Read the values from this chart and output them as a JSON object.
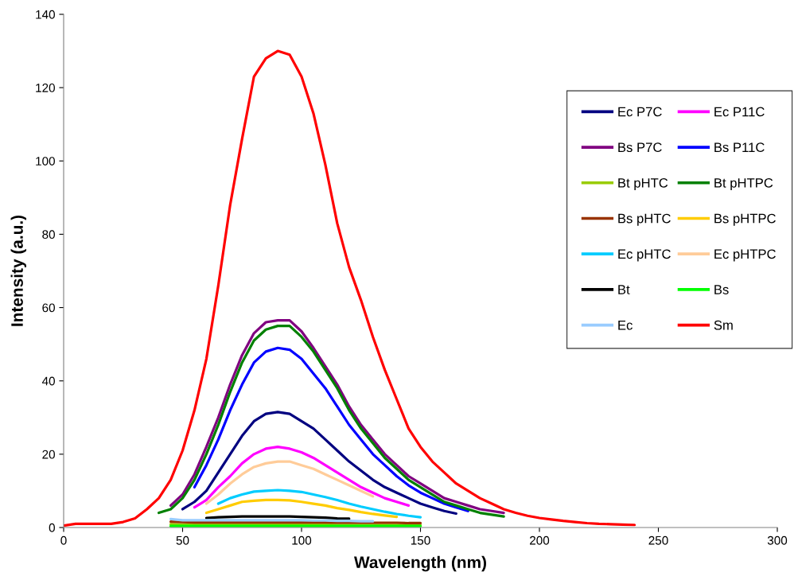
{
  "chart_data": {
    "type": "line",
    "xlabel": "Wavelength (nm)",
    "ylabel": "Intensity (a.u.)",
    "x": [
      0,
      5,
      10,
      15,
      20,
      25,
      30,
      35,
      40,
      45,
      50,
      55,
      60,
      65,
      70,
      75,
      80,
      85,
      90,
      95,
      100,
      105,
      110,
      115,
      120,
      125,
      130,
      135,
      140,
      145,
      150,
      155,
      160,
      165,
      170,
      175,
      180,
      185,
      190,
      195,
      200,
      205,
      210,
      215,
      220,
      225,
      230,
      235,
      240
    ],
    "xlim": [
      0,
      300
    ],
    "xticks": [
      0,
      50,
      100,
      150,
      200,
      250,
      300
    ],
    "ylim": [
      0,
      140
    ],
    "yticks": [
      0,
      20,
      40,
      60,
      80,
      100,
      120,
      140
    ],
    "legend": "right",
    "series": [
      {
        "name": "Ec P7C",
        "color": "#000080",
        "values": [
          null,
          null,
          null,
          null,
          null,
          null,
          null,
          null,
          null,
          null,
          5,
          7,
          10,
          15,
          20,
          25,
          29,
          31,
          31.5,
          31,
          29,
          27,
          24,
          21,
          18,
          15.5,
          13,
          11,
          9.5,
          8,
          6.5,
          5.5,
          4.5,
          3.8,
          null,
          null,
          null,
          null,
          null,
          null,
          null,
          null,
          null,
          null,
          null,
          null,
          null,
          null,
          null
        ]
      },
      {
        "name": "Ec P11C",
        "color": "#ff00ff",
        "values": [
          null,
          null,
          null,
          null,
          null,
          null,
          null,
          null,
          null,
          null,
          null,
          5.5,
          7.5,
          11,
          14,
          17.5,
          20,
          21.5,
          22,
          21.5,
          20.5,
          19,
          17,
          15,
          13,
          11,
          9.5,
          8,
          7,
          6,
          null,
          null,
          null,
          null,
          null,
          null,
          null,
          null,
          null,
          null,
          null,
          null,
          null,
          null,
          null,
          null,
          null,
          null,
          null
        ]
      },
      {
        "name": "Bs P7C",
        "color": "#800080",
        "values": [
          null,
          null,
          null,
          null,
          null,
          null,
          null,
          null,
          null,
          6,
          9,
          14.5,
          22,
          30,
          39,
          47,
          53,
          56,
          56.5,
          56.5,
          53.5,
          49,
          44,
          39,
          33,
          28,
          24,
          20,
          17,
          14,
          12,
          10,
          8,
          7,
          6,
          5,
          4.5,
          4,
          null,
          null,
          null,
          null,
          null,
          null,
          null,
          null,
          null,
          null,
          null
        ]
      },
      {
        "name": "Bs P11C",
        "color": "#0000ff",
        "values": [
          null,
          null,
          null,
          null,
          null,
          null,
          null,
          null,
          null,
          null,
          null,
          11,
          17,
          24,
          32,
          39,
          45,
          48,
          49,
          48.5,
          46,
          42,
          38,
          33,
          28,
          24,
          20,
          17,
          14,
          11.5,
          9.5,
          8,
          6.5,
          5.5,
          4.5,
          null,
          null,
          null,
          null,
          null,
          null,
          null,
          null,
          null,
          null,
          null,
          null,
          null,
          null
        ]
      },
      {
        "name": "Bt pHTC",
        "color": "#99cc00",
        "values": [
          null,
          null,
          null,
          null,
          null,
          null,
          null,
          null,
          null,
          0.9,
          0.8,
          0.8,
          0.8,
          0.8,
          0.8,
          0.8,
          0.8,
          0.8,
          0.8,
          0.8,
          0.8,
          0.8,
          0.8,
          0.7,
          0.7,
          0.7,
          0.7,
          0.7,
          0.7,
          0.7,
          0.7,
          null,
          null,
          null,
          null,
          null,
          null,
          null,
          null,
          null,
          null,
          null,
          null,
          null,
          null,
          null,
          null,
          null,
          null
        ]
      },
      {
        "name": "Bt pHTPC",
        "color": "#008000",
        "values": [
          null,
          null,
          null,
          null,
          null,
          null,
          null,
          null,
          4,
          5,
          8,
          13,
          20,
          28,
          37,
          45,
          51,
          54,
          55,
          55,
          52,
          48,
          43,
          38,
          32,
          27,
          23,
          19,
          16,
          13,
          11,
          9,
          7,
          6,
          5,
          4,
          3.5,
          3,
          null,
          null,
          null,
          null,
          null,
          null,
          null,
          null,
          null,
          null,
          null
        ]
      },
      {
        "name": "Bs pHTC",
        "color": "#993300",
        "values": [
          null,
          null,
          null,
          null,
          null,
          null,
          null,
          null,
          null,
          1.6,
          1.5,
          1.4,
          1.4,
          1.4,
          1.4,
          1.4,
          1.4,
          1.4,
          1.4,
          1.4,
          1.4,
          1.4,
          1.4,
          1.3,
          1.3,
          1.3,
          1.3,
          1.3,
          1.3,
          1.2,
          1.2,
          null,
          null,
          null,
          null,
          null,
          null,
          null,
          null,
          null,
          null,
          null,
          null,
          null,
          null,
          null,
          null,
          null,
          null
        ]
      },
      {
        "name": "Bs pHTPC",
        "color": "#ffcc00",
        "values": [
          null,
          null,
          null,
          null,
          null,
          null,
          null,
          null,
          null,
          null,
          null,
          null,
          4,
          5,
          6,
          7,
          7.3,
          7.5,
          7.5,
          7.4,
          7,
          6.5,
          6,
          5.3,
          4.8,
          4.2,
          3.7,
          3.3,
          2.9,
          null,
          null,
          null,
          null,
          null,
          null,
          null,
          null,
          null,
          null,
          null,
          null,
          null,
          null,
          null,
          null,
          null,
          null,
          null,
          null
        ]
      },
      {
        "name": "Ec pHTC",
        "color": "#00ccff",
        "values": [
          null,
          null,
          null,
          null,
          null,
          null,
          null,
          null,
          null,
          null,
          null,
          null,
          null,
          6.5,
          8,
          9,
          9.8,
          10,
          10.2,
          10,
          9.7,
          9,
          8.3,
          7.5,
          6.5,
          5.7,
          5,
          4.3,
          3.7,
          3.2,
          2.8,
          null,
          null,
          null,
          null,
          null,
          null,
          null,
          null,
          null,
          null,
          null,
          null,
          null,
          null,
          null,
          null,
          null,
          null
        ]
      },
      {
        "name": "Ec pHTPC",
        "color": "#ffcc99",
        "values": [
          null,
          null,
          null,
          null,
          null,
          null,
          null,
          null,
          null,
          null,
          null,
          null,
          6.5,
          9,
          12,
          14.5,
          16.5,
          17.5,
          18,
          18,
          17,
          16,
          14.5,
          13,
          11.5,
          10,
          8.5,
          null,
          null,
          null,
          null,
          null,
          null,
          null,
          null,
          null,
          null,
          null,
          null,
          null,
          null,
          null,
          null,
          null,
          null,
          null,
          null,
          null,
          null
        ]
      },
      {
        "name": "Bt",
        "color": "#000000",
        "values": [
          null,
          null,
          null,
          null,
          null,
          null,
          null,
          null,
          null,
          null,
          null,
          null,
          2.6,
          2.8,
          2.9,
          3,
          3,
          3,
          3,
          3,
          2.9,
          2.8,
          2.7,
          2.5,
          2.4,
          null,
          null,
          null,
          null,
          null,
          null,
          null,
          null,
          null,
          null,
          null,
          null,
          null,
          null,
          null,
          null,
          null,
          null,
          null,
          null,
          null,
          null,
          null,
          null
        ]
      },
      {
        "name": "Bs",
        "color": "#00ff00",
        "values": [
          null,
          null,
          null,
          null,
          null,
          null,
          null,
          null,
          null,
          0.4,
          0.4,
          0.4,
          0.4,
          0.4,
          0.4,
          0.4,
          0.4,
          0.4,
          0.4,
          0.4,
          0.4,
          0.4,
          0.4,
          0.4,
          0.4,
          0.4,
          0.4,
          0.4,
          0.4,
          0.4,
          0.4,
          null,
          null,
          null,
          null,
          null,
          null,
          null,
          null,
          null,
          null,
          null,
          null,
          null,
          null,
          null,
          null,
          null,
          null
        ]
      },
      {
        "name": "Ec",
        "color": "#99ccff",
        "values": [
          null,
          null,
          null,
          null,
          null,
          null,
          null,
          null,
          null,
          2.3,
          2,
          2,
          2,
          2,
          2,
          2,
          2,
          2,
          2,
          2,
          2,
          1.9,
          1.9,
          1.8,
          1.8,
          1.7,
          1.7,
          null,
          null,
          null,
          null,
          null,
          null,
          null,
          null,
          null,
          null,
          null,
          null,
          null,
          null,
          null,
          null,
          null,
          null,
          null,
          null,
          null,
          null
        ]
      },
      {
        "name": "Sm",
        "color": "#ff0000",
        "values": [
          0.5,
          1,
          1,
          1,
          1,
          1.5,
          2.5,
          5,
          8,
          13,
          21,
          32,
          46,
          66,
          88,
          106,
          123,
          128,
          130,
          129,
          123,
          113,
          99,
          83,
          71,
          62,
          52,
          43,
          35,
          27,
          22,
          18,
          15,
          12,
          10,
          8,
          6.5,
          5,
          4,
          3.2,
          2.6,
          2.2,
          1.8,
          1.5,
          1.2,
          1,
          0.9,
          0.8,
          0.7
        ]
      }
    ]
  }
}
